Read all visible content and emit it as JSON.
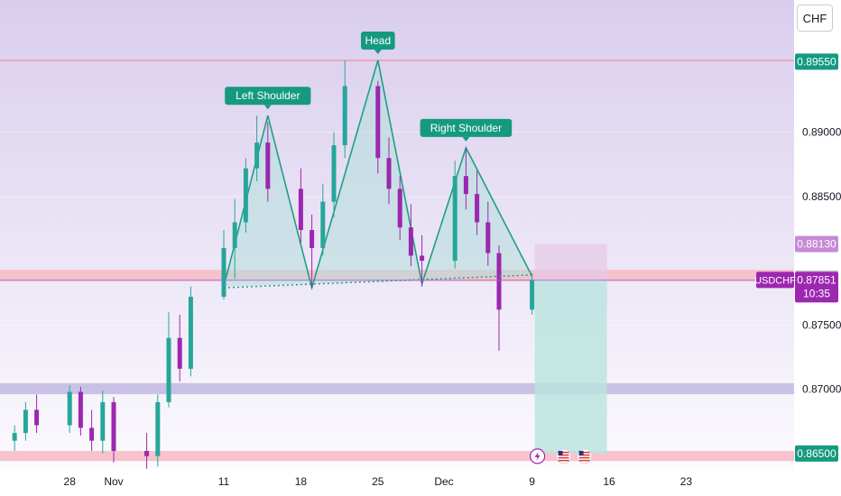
{
  "symbol": "USDCHF",
  "currency_button": "CHF",
  "countdown": "10:35",
  "colors": {
    "up": "#26a69a",
    "down": "#9c27b0",
    "pattern_line": "#1f9e86",
    "pattern_fill": "#b2dfdb",
    "resistance_zone": "#f7b8c4",
    "support_zone": "#c5bde3",
    "target_zone": "#b9e3dd",
    "stop_zone": "#e7c9e6",
    "background_top": "#d9cdee",
    "label_bg": "#159a80"
  },
  "chart_data": {
    "type": "candlestick",
    "instrument": "USDCHF",
    "ylim": [
      0.8638,
      0.9003
    ],
    "x_tick_labels": [
      "28",
      "Nov",
      "11",
      "18",
      "25",
      "Dec",
      "9",
      "16",
      "23"
    ],
    "y_tick_labels": [
      "0.87000",
      "0.87500",
      "0.88500",
      "0.89000"
    ],
    "price_labels": {
      "resistance_top": "0.89550",
      "stop": "0.88130",
      "neckline_level": "0.87863",
      "current_price": "0.87851",
      "target": "0.86500"
    },
    "pattern": {
      "name": "Head and Shoulders",
      "annotations": [
        "Left Shoulder",
        "Head",
        "Right Shoulder"
      ],
      "points": [
        {
          "date": "Nov 11",
          "price": 0.878
        },
        {
          "date": "Nov 15",
          "price": 0.8913
        },
        {
          "date": "Nov 19",
          "price": 0.8779
        },
        {
          "date": "Nov 25",
          "price": 0.8956
        },
        {
          "date": "Nov 29",
          "price": 0.8782
        },
        {
          "date": "Dec 3",
          "price": 0.8888
        },
        {
          "date": "Dec 9",
          "price": 0.8788
        }
      ],
      "neckline": [
        {
          "date": "Nov 11",
          "price": 0.8779
        },
        {
          "date": "Dec 9",
          "price": 0.8789
        }
      ]
    },
    "zones": {
      "resistance_line": 0.8956,
      "neck_zone": [
        0.8784,
        0.8793
      ],
      "mid_support_zone": [
        0.8699,
        0.8702
      ],
      "low_support_zone": [
        0.8647,
        0.8652
      ],
      "short_entry": 0.8785,
      "short_stop": 0.8813,
      "short_target": 0.865
    },
    "series": [
      {
        "name": "USDCHF",
        "ohlc_daily": [
          {
            "date": "Oct 23",
            "o": 0.866,
            "h": 0.8672,
            "l": 0.8652,
            "c": 0.8666
          },
          {
            "date": "Oct 24",
            "o": 0.8666,
            "h": 0.869,
            "l": 0.866,
            "c": 0.8684
          },
          {
            "date": "Oct 25",
            "o": 0.8684,
            "h": 0.8696,
            "l": 0.8666,
            "c": 0.8672
          },
          {
            "date": "Oct 28",
            "o": 0.8672,
            "h": 0.8703,
            "l": 0.8666,
            "c": 0.8698
          },
          {
            "date": "Oct 29",
            "o": 0.8698,
            "h": 0.8702,
            "l": 0.8664,
            "c": 0.867
          },
          {
            "date": "Oct 30",
            "o": 0.867,
            "h": 0.8684,
            "l": 0.8652,
            "c": 0.866
          },
          {
            "date": "Oct 31",
            "o": 0.866,
            "h": 0.8699,
            "l": 0.865,
            "c": 0.869
          },
          {
            "date": "Nov 1",
            "o": 0.869,
            "h": 0.8694,
            "l": 0.8643,
            "c": 0.8652
          },
          {
            "date": "Nov 4",
            "o": 0.8652,
            "h": 0.8666,
            "l": 0.8638,
            "c": 0.8648
          },
          {
            "date": "Nov 5",
            "o": 0.8648,
            "h": 0.8696,
            "l": 0.864,
            "c": 0.869
          },
          {
            "date": "Nov 6",
            "o": 0.869,
            "h": 0.876,
            "l": 0.8686,
            "c": 0.874
          },
          {
            "date": "Nov 7",
            "o": 0.874,
            "h": 0.8758,
            "l": 0.8706,
            "c": 0.8716
          },
          {
            "date": "Nov 8",
            "o": 0.8716,
            "h": 0.878,
            "l": 0.871,
            "c": 0.8772
          },
          {
            "date": "Nov 11",
            "o": 0.8772,
            "h": 0.8824,
            "l": 0.877,
            "c": 0.881
          },
          {
            "date": "Nov 12",
            "o": 0.881,
            "h": 0.8848,
            "l": 0.8786,
            "c": 0.883
          },
          {
            "date": "Nov 13",
            "o": 0.883,
            "h": 0.888,
            "l": 0.8822,
            "c": 0.8872
          },
          {
            "date": "Nov 14",
            "o": 0.8872,
            "h": 0.8913,
            "l": 0.8862,
            "c": 0.8892
          },
          {
            "date": "Nov 15",
            "o": 0.8892,
            "h": 0.8908,
            "l": 0.8846,
            "c": 0.8856
          },
          {
            "date": "Nov 18",
            "o": 0.8856,
            "h": 0.8872,
            "l": 0.8814,
            "c": 0.8824
          },
          {
            "date": "Nov 19",
            "o": 0.8824,
            "h": 0.8836,
            "l": 0.8779,
            "c": 0.881
          },
          {
            "date": "Nov 20",
            "o": 0.881,
            "h": 0.886,
            "l": 0.8804,
            "c": 0.8846
          },
          {
            "date": "Nov 21",
            "o": 0.8846,
            "h": 0.89,
            "l": 0.8834,
            "c": 0.889
          },
          {
            "date": "Nov 22",
            "o": 0.889,
            "h": 0.8956,
            "l": 0.888,
            "c": 0.8936
          },
          {
            "date": "Nov 25",
            "o": 0.8936,
            "h": 0.894,
            "l": 0.8868,
            "c": 0.888
          },
          {
            "date": "Nov 26",
            "o": 0.888,
            "h": 0.8896,
            "l": 0.8844,
            "c": 0.8856
          },
          {
            "date": "Nov 27",
            "o": 0.8856,
            "h": 0.8866,
            "l": 0.8816,
            "c": 0.8826
          },
          {
            "date": "Nov 28",
            "o": 0.8826,
            "h": 0.8844,
            "l": 0.8796,
            "c": 0.8804
          },
          {
            "date": "Nov 29",
            "o": 0.8804,
            "h": 0.882,
            "l": 0.878,
            "c": 0.88
          },
          {
            "date": "Dec 2",
            "o": 0.88,
            "h": 0.8878,
            "l": 0.8794,
            "c": 0.8866
          },
          {
            "date": "Dec 3",
            "o": 0.8866,
            "h": 0.8888,
            "l": 0.884,
            "c": 0.8852
          },
          {
            "date": "Dec 4",
            "o": 0.8852,
            "h": 0.887,
            "l": 0.882,
            "c": 0.883
          },
          {
            "date": "Dec 5",
            "o": 0.883,
            "h": 0.8846,
            "l": 0.8796,
            "c": 0.8806
          },
          {
            "date": "Dec 6",
            "o": 0.8806,
            "h": 0.8812,
            "l": 0.873,
            "c": 0.8762
          },
          {
            "date": "Dec 9",
            "o": 0.8762,
            "h": 0.879,
            "l": 0.8758,
            "c": 0.8785
          }
        ]
      }
    ]
  }
}
